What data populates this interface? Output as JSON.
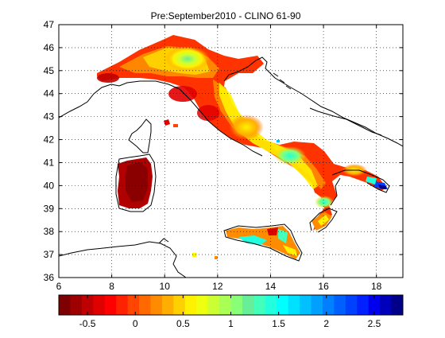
{
  "title": "Pre:September2010 - CLINO 61-90",
  "map": {
    "lon_range": [
      6,
      19
    ],
    "lat_range": [
      36,
      47
    ],
    "lon_ticks": [
      "6",
      "8",
      "10",
      "12",
      "14",
      "16",
      "18"
    ],
    "lat_ticks": [
      "36",
      "37",
      "38",
      "39",
      "40",
      "41",
      "42",
      "43",
      "44",
      "45",
      "46",
      "47"
    ],
    "grid": "dotted"
  },
  "colorbar": {
    "value_range": [
      -0.8,
      2.8
    ],
    "ticks": [
      "-0.5",
      "0",
      "0.5",
      "1",
      "1.5",
      "2",
      "2.5"
    ],
    "colors": [
      "#7f0000",
      "#9e0000",
      "#c00000",
      "#e00000",
      "#ff0000",
      "#ff2200",
      "#ff4500",
      "#ff6a00",
      "#ff8c00",
      "#ffae00",
      "#ffd000",
      "#fff200",
      "#eeff10",
      "#ccff33",
      "#aaff55",
      "#88ff77",
      "#66ee99",
      "#44ffbb",
      "#22ffdd",
      "#00ffff",
      "#00e0ff",
      "#00c0ff",
      "#00a0ff",
      "#0080ff",
      "#0060ff",
      "#0040ff",
      "#0020ff",
      "#0000ee",
      "#0000bb",
      "#000088"
    ]
  }
}
